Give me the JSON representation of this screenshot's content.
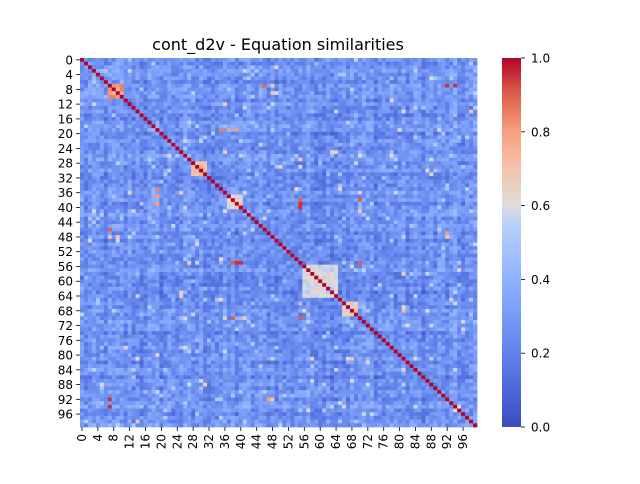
{
  "chart_data": {
    "type": "heatmap",
    "title": "cont_d2v - Equation similarities",
    "xlabel": "",
    "ylabel": "",
    "n": 100,
    "x_tick_labels": [
      "0",
      "4",
      "8",
      "12",
      "16",
      "20",
      "24",
      "28",
      "32",
      "36",
      "40",
      "44",
      "48",
      "52",
      "56",
      "60",
      "64",
      "68",
      "72",
      "76",
      "80",
      "84",
      "88",
      "92",
      "96"
    ],
    "y_tick_labels": [
      "0",
      "4",
      "8",
      "12",
      "16",
      "20",
      "24",
      "28",
      "32",
      "36",
      "40",
      "44",
      "48",
      "52",
      "56",
      "60",
      "64",
      "68",
      "72",
      "76",
      "80",
      "84",
      "88",
      "92",
      "96"
    ],
    "tick_step": 4,
    "colorbar": {
      "min": 0.0,
      "max": 1.0,
      "tick_labels": [
        "0.0",
        "0.2",
        "0.4",
        "0.6",
        "0.8",
        "1.0"
      ],
      "colormap": "coolwarm"
    },
    "diagonal_value": 1.0,
    "typical_offdiagonal_value_range": [
      0.05,
      0.3
    ],
    "high_similarity_blocks": [
      {
        "rows": [
          7,
          10
        ],
        "cols": [
          7,
          10
        ],
        "value": 0.85
      },
      {
        "rows": [
          28,
          31
        ],
        "cols": [
          28,
          31
        ],
        "value": 0.75
      },
      {
        "rows": [
          37,
          40
        ],
        "cols": [
          37,
          40
        ],
        "value": 0.7
      },
      {
        "rows": [
          56,
          64
        ],
        "cols": [
          56,
          64
        ],
        "value": 0.65
      },
      {
        "rows": [
          66,
          69
        ],
        "cols": [
          66,
          69
        ],
        "value": 0.7
      },
      {
        "rows": [
          57,
          63
        ],
        "cols": [
          57,
          63
        ],
        "value": 0.55
      }
    ],
    "high_similarity_points": [
      {
        "row": 7,
        "col": 46,
        "value": 0.9
      },
      {
        "row": 7,
        "col": 92,
        "value": 0.95
      },
      {
        "row": 7,
        "col": 94,
        "value": 0.95
      },
      {
        "row": 19,
        "col": 37,
        "value": 0.85
      },
      {
        "row": 19,
        "col": 39,
        "value": 0.8
      },
      {
        "row": 35,
        "col": 19,
        "value": 0.85
      },
      {
        "row": 37,
        "col": 19,
        "value": 0.8
      },
      {
        "row": 38,
        "col": 55,
        "value": 0.95
      },
      {
        "row": 38,
        "col": 70,
        "value": 0.95
      },
      {
        "row": 40,
        "col": 55,
        "value": 0.95
      },
      {
        "row": 48,
        "col": 7,
        "value": 0.7
      },
      {
        "row": 48,
        "col": 9,
        "value": 0.7
      },
      {
        "row": 48,
        "col": 92,
        "value": 0.7
      },
      {
        "row": 55,
        "col": 38,
        "value": 0.9
      },
      {
        "row": 55,
        "col": 39,
        "value": 0.95
      },
      {
        "row": 55,
        "col": 70,
        "value": 0.9
      },
      {
        "row": 63,
        "col": 25,
        "value": 0.65
      },
      {
        "row": 64,
        "col": 25,
        "value": 0.65
      },
      {
        "row": 70,
        "col": 38,
        "value": 0.9
      },
      {
        "row": 70,
        "col": 55,
        "value": 0.9
      },
      {
        "row": 87,
        "col": 30,
        "value": 0.6
      },
      {
        "row": 31,
        "col": 88,
        "value": 0.65
      },
      {
        "row": 92,
        "col": 7,
        "value": 0.95
      },
      {
        "row": 94,
        "col": 7,
        "value": 0.95
      },
      {
        "row": 92,
        "col": 47,
        "value": 0.8
      },
      {
        "row": 14,
        "col": 98,
        "value": 0.7
      }
    ]
  }
}
